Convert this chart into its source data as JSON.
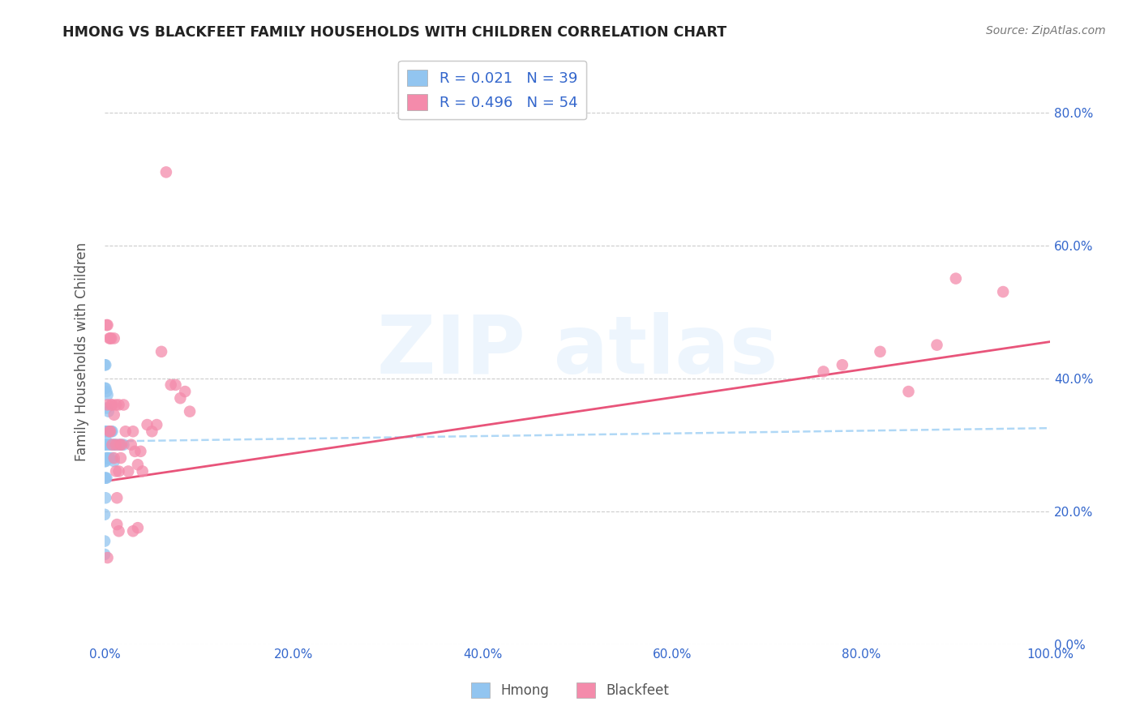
{
  "title": "HMONG VS BLACKFEET FAMILY HOUSEHOLDS WITH CHILDREN CORRELATION CHART",
  "source": "Source: ZipAtlas.com",
  "ylabel": "Family Households with Children",
  "hmong_color": "#92C5F0",
  "blackfeet_color": "#F48BAB",
  "hmong_line_color": "#A8D4F5",
  "blackfeet_line_color": "#E8547A",
  "hmong_R": 0.021,
  "hmong_N": 39,
  "blackfeet_R": 0.496,
  "blackfeet_N": 54,
  "legend_label_color": "#3366CC",
  "background_color": "#FFFFFF",
  "grid_color": "#CCCCCC",
  "tick_color": "#3366CC",
  "ylabel_color": "#555555",
  "title_color": "#222222",
  "source_color": "#777777",
  "xlim": [
    0.0,
    1.0
  ],
  "ylim": [
    0.0,
    0.88
  ],
  "xticks": [
    0.0,
    0.2,
    0.4,
    0.6,
    0.8,
    1.0
  ],
  "yticks": [
    0.0,
    0.2,
    0.4,
    0.6,
    0.8
  ],
  "hmong_line_x": [
    0.0,
    1.0
  ],
  "hmong_line_y": [
    0.305,
    0.325
  ],
  "blackfeet_line_x": [
    0.0,
    1.0
  ],
  "blackfeet_line_y": [
    0.245,
    0.455
  ],
  "hmong_x": [
    0.0,
    0.0,
    0.0,
    0.0,
    0.0,
    0.0,
    0.0,
    0.001,
    0.001,
    0.001,
    0.001,
    0.001,
    0.001,
    0.001,
    0.002,
    0.002,
    0.002,
    0.002,
    0.002,
    0.003,
    0.003,
    0.003,
    0.004,
    0.004,
    0.005,
    0.005,
    0.006,
    0.007,
    0.008,
    0.008,
    0.009,
    0.01,
    0.01,
    0.012,
    0.015,
    0.017,
    0.02,
    0.0,
    0.0
  ],
  "hmong_y": [
    0.42,
    0.385,
    0.32,
    0.3,
    0.275,
    0.25,
    0.135,
    0.42,
    0.385,
    0.32,
    0.3,
    0.275,
    0.25,
    0.22,
    0.38,
    0.355,
    0.305,
    0.28,
    0.25,
    0.375,
    0.32,
    0.28,
    0.35,
    0.3,
    0.32,
    0.28,
    0.3,
    0.32,
    0.32,
    0.28,
    0.3,
    0.3,
    0.275,
    0.3,
    0.3,
    0.3,
    0.3,
    0.195,
    0.155
  ],
  "blackfeet_x": [
    0.002,
    0.003,
    0.005,
    0.005,
    0.006,
    0.006,
    0.007,
    0.007,
    0.008,
    0.01,
    0.01,
    0.01,
    0.012,
    0.012,
    0.013,
    0.015,
    0.015,
    0.015,
    0.016,
    0.017,
    0.018,
    0.02,
    0.022,
    0.025,
    0.028,
    0.03,
    0.032,
    0.035,
    0.038,
    0.04,
    0.045,
    0.05,
    0.055,
    0.06,
    0.065,
    0.07,
    0.075,
    0.08,
    0.085,
    0.09,
    0.003,
    0.008,
    0.76,
    0.78,
    0.82,
    0.85,
    0.88,
    0.9,
    0.95,
    0.003,
    0.013,
    0.012,
    0.03,
    0.035
  ],
  "blackfeet_y": [
    0.48,
    0.36,
    0.46,
    0.32,
    0.46,
    0.32,
    0.36,
    0.46,
    0.36,
    0.345,
    0.28,
    0.46,
    0.3,
    0.36,
    0.22,
    0.17,
    0.26,
    0.36,
    0.3,
    0.28,
    0.3,
    0.36,
    0.32,
    0.26,
    0.3,
    0.32,
    0.29,
    0.27,
    0.29,
    0.26,
    0.33,
    0.32,
    0.33,
    0.44,
    0.71,
    0.39,
    0.39,
    0.37,
    0.38,
    0.35,
    0.48,
    0.3,
    0.41,
    0.42,
    0.44,
    0.38,
    0.45,
    0.55,
    0.53,
    0.13,
    0.18,
    0.26,
    0.17,
    0.175
  ]
}
